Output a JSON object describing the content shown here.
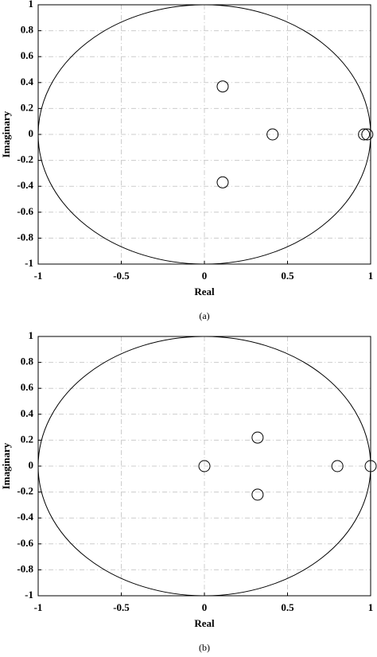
{
  "chart_data": [
    {
      "type": "scatter",
      "xlabel": "Real",
      "ylabel": "Imaginary",
      "caption": "(a)",
      "x": [
        0.11,
        0.41,
        0.11,
        0.96,
        0.98
      ],
      "y": [
        0.37,
        0,
        -0.37,
        0,
        0
      ],
      "xlim": [
        -1,
        1
      ],
      "ylim": [
        -1,
        1
      ],
      "xticks": [
        -1,
        -0.5,
        0,
        0.5,
        1
      ],
      "yticks": [
        -1,
        -0.8,
        -0.6,
        -0.4,
        -0.2,
        0,
        0.2,
        0.4,
        0.6,
        0.8,
        1
      ],
      "grid": true,
      "color": "#000000"
    },
    {
      "type": "scatter",
      "xlabel": "Real",
      "ylabel": "Imaginary",
      "caption": "(b)",
      "x": [
        0,
        0.32,
        0.32,
        0.8,
        1
      ],
      "y": [
        0,
        0.22,
        -0.22,
        0,
        0
      ],
      "xlim": [
        -1,
        1
      ],
      "ylim": [
        -1,
        1
      ],
      "xticks": [
        -1,
        -0.5,
        0,
        0.5,
        1
      ],
      "yticks": [
        -1,
        -0.8,
        -0.6,
        -0.4,
        -0.2,
        0,
        0.2,
        0.4,
        0.6,
        0.8,
        1
      ],
      "grid": true,
      "color": "#000000"
    }
  ]
}
